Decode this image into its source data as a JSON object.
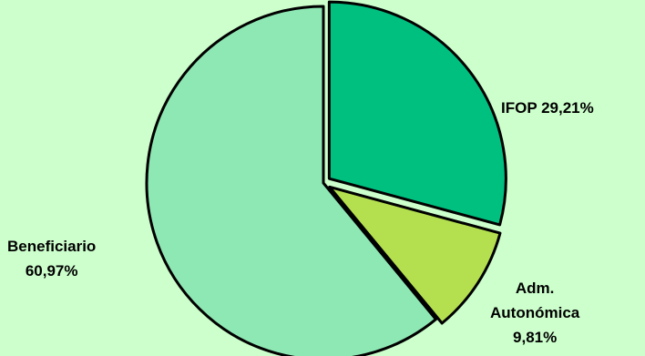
{
  "chart_data": {
    "type": "pie",
    "title": "",
    "slices": [
      {
        "label": "IFOP 29,21%",
        "label_lines": [
          "IFOP 29,21%"
        ],
        "value": 29.21,
        "color": "#00c080",
        "exploded": true
      },
      {
        "label": "Adm. Autonómica 9,81%",
        "label_lines": [
          "Adm.",
          "Autonómica",
          "9,81%"
        ],
        "value": 9.81,
        "color": "#b4e050",
        "exploded": true
      },
      {
        "label": "Beneficiario 60,97%",
        "label_lines": [
          "Beneficiario",
          "60,97%"
        ],
        "value": 60.97,
        "color": "#8ee8b4",
        "exploded": false
      }
    ],
    "start_angle_deg": 0,
    "direction": "clockwise",
    "legend": "none"
  },
  "colors": {
    "background": "#ccffcc",
    "slice_stroke": "#000000"
  }
}
